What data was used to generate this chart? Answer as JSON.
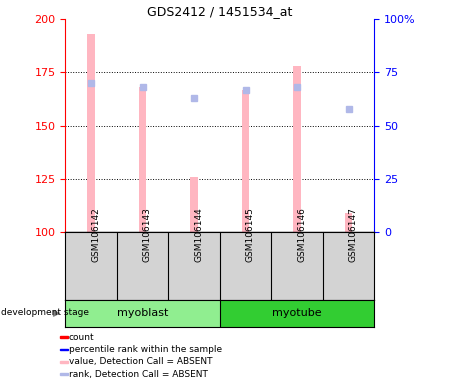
{
  "title": "GDS2412 / 1451534_at",
  "samples": [
    "GSM106142",
    "GSM106143",
    "GSM106144",
    "GSM106145",
    "GSM106146",
    "GSM106147"
  ],
  "group_labels": [
    "myoblast",
    "myotube"
  ],
  "group_ranges": [
    [
      0,
      3
    ],
    [
      3,
      6
    ]
  ],
  "ylim_left": [
    100,
    200
  ],
  "ylim_right": [
    0,
    100
  ],
  "yticks_left": [
    100,
    125,
    150,
    175,
    200
  ],
  "yticks_right": [
    0,
    25,
    50,
    75,
    100
  ],
  "yticklabels_right": [
    "0",
    "25",
    "50",
    "75",
    "100%"
  ],
  "bar_values": [
    193,
    168,
    126,
    167,
    178,
    109
  ],
  "rank_values": [
    170,
    168,
    163,
    167,
    168,
    158
  ],
  "bar_color": "#FFB6C1",
  "rank_color": "#B0B8E8",
  "bar_base": 100,
  "legend_items": [
    {
      "color": "#FF0000",
      "label": "count"
    },
    {
      "color": "#0000FF",
      "label": "percentile rank within the sample"
    },
    {
      "color": "#FFB6C1",
      "label": "value, Detection Call = ABSENT"
    },
    {
      "color": "#B0B8E8",
      "label": "rank, Detection Call = ABSENT"
    }
  ],
  "group_colors": [
    "#90EE90",
    "#32CD32"
  ],
  "development_stage_label": "development stage",
  "axis_bg_color": "#FFFFFF",
  "sample_bg_color": "#D3D3D3",
  "left_axis_color": "#FF0000",
  "right_axis_color": "#0000FF",
  "hgrid_values": [
    125,
    150,
    175
  ],
  "bar_width": 0.15
}
